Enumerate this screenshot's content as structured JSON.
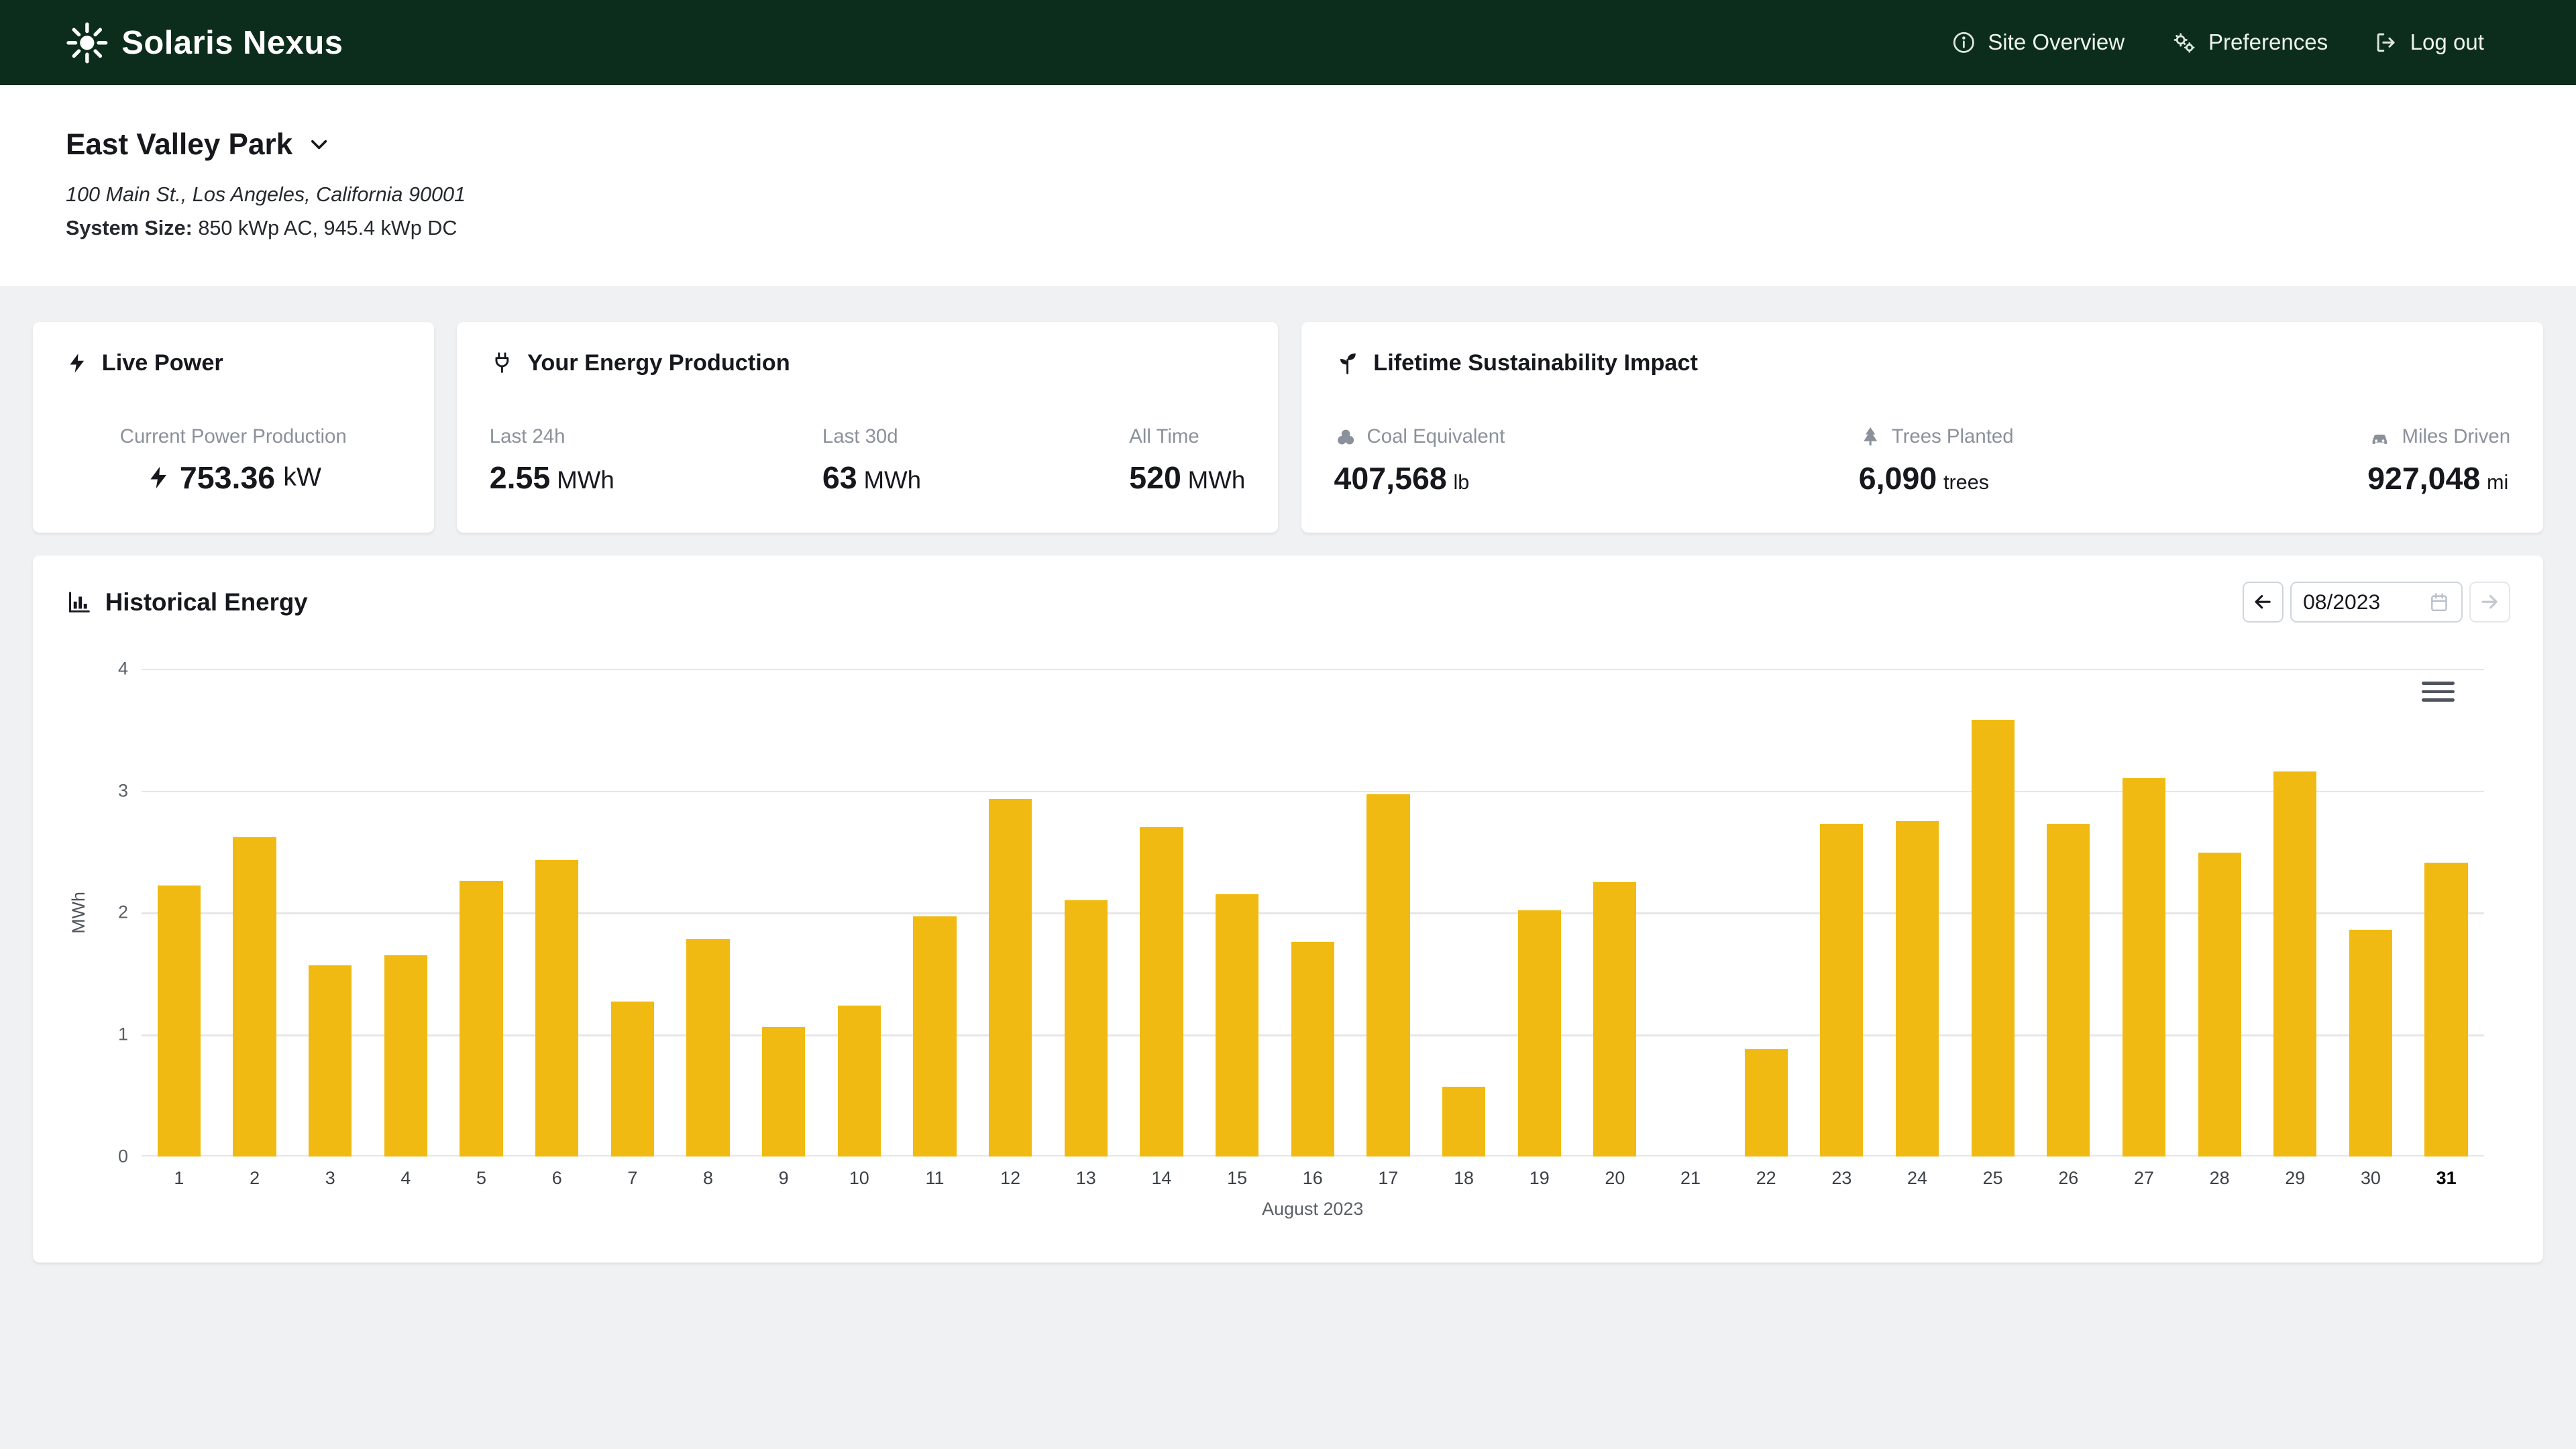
{
  "colors": {
    "navbar_bg": "#0c2d1b",
    "bar": "#f0ba12",
    "page_bg": "#f0f1f3"
  },
  "navbar": {
    "brand": "Solaris Nexus",
    "links": [
      {
        "label": "Site Overview"
      },
      {
        "label": "Preferences"
      },
      {
        "label": "Log out"
      }
    ]
  },
  "site": {
    "name": "East Valley Park",
    "address": "100 Main St., Los Angeles, California 90001",
    "system_size_label": "System Size:",
    "system_size_value": "850 kWp AC, 945.4 kWp DC"
  },
  "live_power": {
    "title": "Live Power",
    "label": "Current Power Production",
    "value": "753.36",
    "unit": "kW"
  },
  "energy_production": {
    "title": "Your Energy Production",
    "stats": [
      {
        "label": "Last 24h",
        "value": "2.55",
        "unit": "MWh"
      },
      {
        "label": "Last 30d",
        "value": "63",
        "unit": "MWh"
      },
      {
        "label": "All Time",
        "value": "520",
        "unit": "MWh"
      }
    ]
  },
  "sustainability": {
    "title": "Lifetime Sustainability Impact",
    "stats": [
      {
        "label": "Coal Equivalent",
        "icon": "coal-icon",
        "value": "407,568",
        "unit": "lb"
      },
      {
        "label": "Trees Planted",
        "icon": "tree-icon",
        "value": "6,090",
        "unit": "trees"
      },
      {
        "label": "Miles Driven",
        "icon": "car-icon",
        "value": "927,048",
        "unit": "mi"
      }
    ]
  },
  "historical": {
    "title": "Historical Energy",
    "date_value": "08/2023"
  },
  "chart_data": {
    "type": "bar",
    "title": "",
    "xlabel": "August 2023",
    "ylabel": "MWh",
    "ylim": [
      0,
      4
    ],
    "yticks": [
      0,
      1,
      2,
      3,
      4
    ],
    "categories": [
      1,
      2,
      3,
      4,
      5,
      6,
      7,
      8,
      9,
      10,
      11,
      12,
      13,
      14,
      15,
      16,
      17,
      18,
      19,
      20,
      21,
      22,
      23,
      24,
      25,
      26,
      27,
      28,
      29,
      30,
      31
    ],
    "values": [
      2.22,
      2.62,
      1.57,
      1.65,
      2.26,
      2.43,
      1.27,
      1.78,
      1.06,
      1.24,
      1.97,
      2.93,
      2.1,
      2.7,
      2.15,
      1.76,
      2.97,
      0.57,
      2.02,
      2.25,
      0,
      0.88,
      2.73,
      2.75,
      3.58,
      2.73,
      3.1,
      2.49,
      3.16,
      1.86,
      2.41
    ],
    "bar_color": "#f0ba12",
    "grid": true,
    "legend": false
  }
}
